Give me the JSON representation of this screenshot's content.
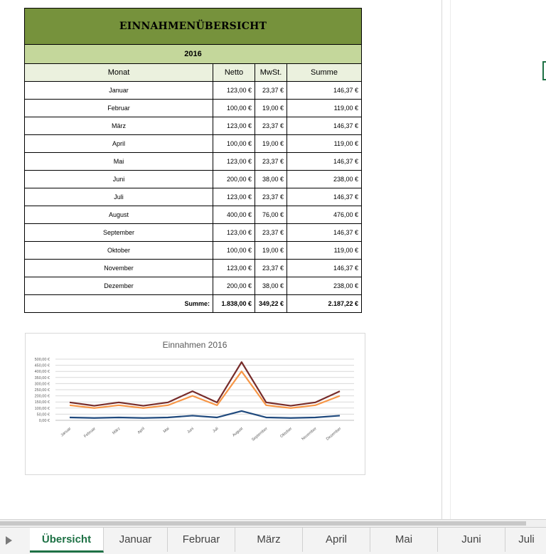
{
  "sheet": {
    "title": "EINNAHMENÜBERSICHT",
    "year": "2016",
    "headers": {
      "month": "Monat",
      "netto": "Netto",
      "mwst": "MwSt.",
      "summe": "Summe"
    },
    "rows": [
      {
        "month": "Januar",
        "netto": "123,00 €",
        "mwst": "23,37 €",
        "summe": "146,37 €"
      },
      {
        "month": "Februar",
        "netto": "100,00 €",
        "mwst": "19,00 €",
        "summe": "119,00 €"
      },
      {
        "month": "März",
        "netto": "123,00 €",
        "mwst": "23,37 €",
        "summe": "146,37 €"
      },
      {
        "month": "April",
        "netto": "100,00 €",
        "mwst": "19,00 €",
        "summe": "119,00 €"
      },
      {
        "month": "Mai",
        "netto": "123,00 €",
        "mwst": "23,37 €",
        "summe": "146,37 €"
      },
      {
        "month": "Juni",
        "netto": "200,00 €",
        "mwst": "38,00 €",
        "summe": "238,00 €"
      },
      {
        "month": "Juli",
        "netto": "123,00 €",
        "mwst": "23,37 €",
        "summe": "146,37 €"
      },
      {
        "month": "August",
        "netto": "400,00 €",
        "mwst": "76,00 €",
        "summe": "476,00 €"
      },
      {
        "month": "September",
        "netto": "123,00 €",
        "mwst": "23,37 €",
        "summe": "146,37 €"
      },
      {
        "month": "Oktober",
        "netto": "100,00 €",
        "mwst": "19,00 €",
        "summe": "119,00 €"
      },
      {
        "month": "November",
        "netto": "123,00 €",
        "mwst": "23,37 €",
        "summe": "146,37 €"
      },
      {
        "month": "Dezember",
        "netto": "200,00 €",
        "mwst": "38,00 €",
        "summe": "238,00 €"
      }
    ],
    "total": {
      "label": "Summe:",
      "netto": "1.838,00 €",
      "mwst": "349,22 €",
      "summe": "2.187,22 €"
    }
  },
  "chart_data": {
    "type": "line",
    "title": "Einnahmen 2016",
    "categories": [
      "Januar",
      "Februar",
      "März",
      "April",
      "Mai",
      "Juni",
      "Juli",
      "August",
      "September",
      "Oktober",
      "November",
      "Dezember"
    ],
    "series": [
      {
        "values": [
          123,
          100,
          123,
          100,
          123,
          200,
          123,
          400,
          123,
          100,
          123,
          200
        ],
        "color": "#f79646"
      },
      {
        "values": [
          23.37,
          19,
          23.37,
          19,
          23.37,
          38,
          23.37,
          76,
          23.37,
          19,
          23.37,
          38
        ],
        "color": "#1f497d"
      },
      {
        "values": [
          146.37,
          119,
          146.37,
          119,
          146.37,
          238,
          146.37,
          476,
          146.37,
          119,
          146.37,
          238
        ],
        "color": "#772c2a"
      }
    ],
    "yticks": [
      "0,00 €",
      "50,00 €",
      "100,00 €",
      "150,00 €",
      "200,00 €",
      "250,00 €",
      "300,00 €",
      "350,00 €",
      "400,00 €",
      "450,00 €",
      "500,00 €"
    ],
    "ylim": [
      0,
      500
    ],
    "grid": true,
    "legend": "none"
  },
  "tabs": {
    "items": [
      "Übersicht",
      "Januar",
      "Februar",
      "März",
      "April",
      "Mai",
      "Juni",
      "Juli"
    ],
    "active": "Übersicht"
  },
  "colors": {
    "title_fill": "#76923c",
    "year_fill": "#c4d79b",
    "header_fill": "#ebf1de",
    "accent": "#1e7145"
  }
}
